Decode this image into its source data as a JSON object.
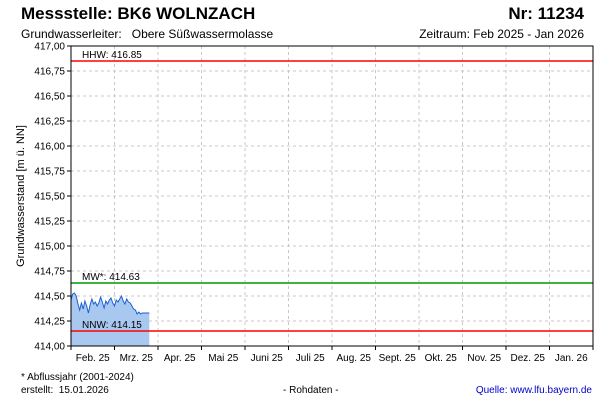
{
  "header": {
    "title": "Messstelle: BK6 WOLNZACH",
    "number": "Nr: 11234",
    "aquifer_label": "Grundwasserleiter:",
    "aquifer_value": "Obere Süßwassermolasse",
    "period_label": "Zeitraum:",
    "period_value": "Feb 2025 - Jan 2026"
  },
  "footer": {
    "footnote": "* Abflussjahr (2001-2024)",
    "created_label": "erstellt:",
    "created_value": "15.01.2026",
    "raw": "- Rohdaten -",
    "source_label": "Quelle:",
    "source_value": "www.lfu.bayern.de"
  },
  "chart_data": {
    "type": "area",
    "ylabel": "Grundwasserstand [m ü. NN]",
    "ylim": [
      414.0,
      417.0
    ],
    "y_ticks": [
      "414,00",
      "414,25",
      "414,50",
      "414,75",
      "415,00",
      "415,25",
      "415,50",
      "415,75",
      "416,00",
      "416,25",
      "416,50",
      "416,75",
      "417,00"
    ],
    "x_ticks": [
      "Feb. 25",
      "Mrz. 25",
      "Apr. 25",
      "Mai 25",
      "Juni 25",
      "Juli 25",
      "Aug. 25",
      "Sept. 25",
      "Okt. 25",
      "Nov. 25",
      "Dez. 25",
      "Jan. 26"
    ],
    "grid": true,
    "colors": {
      "area_fill": "#a8c8f0",
      "area_line": "#1f5fd0",
      "hhw": "#ff0000",
      "nnw": "#ff0000",
      "mw": "#009900"
    },
    "reference_lines": [
      {
        "label": "HHW: 416.85",
        "value": 416.85,
        "color": "#ff0000"
      },
      {
        "label": "MW*: 414.63",
        "value": 414.63,
        "color": "#009900"
      },
      {
        "label": "NNW: 414.15",
        "value": 414.15,
        "color": "#ff0000"
      }
    ],
    "series": [
      {
        "x_month_fraction": [
          0.0,
          0.04,
          0.08,
          0.12,
          0.16,
          0.2,
          0.24,
          0.28,
          0.32,
          0.36,
          0.4,
          0.44,
          0.48,
          0.52,
          0.56,
          0.6,
          0.64,
          0.68,
          0.72,
          0.76,
          0.8,
          0.84,
          0.88,
          0.92,
          0.96,
          1.0,
          1.04,
          1.08,
          1.12,
          1.16,
          1.2,
          1.24,
          1.28,
          1.32,
          1.36,
          1.4,
          1.44,
          1.48,
          1.52,
          1.56,
          1.6,
          1.64,
          1.68,
          1.72,
          1.76,
          1.8
        ],
        "values": [
          414.46,
          414.52,
          414.53,
          414.5,
          414.42,
          414.36,
          414.43,
          414.37,
          414.45,
          414.4,
          414.33,
          414.41,
          414.47,
          414.42,
          414.44,
          414.4,
          414.43,
          414.49,
          414.44,
          414.38,
          414.45,
          414.42,
          414.46,
          414.48,
          414.43,
          414.4,
          414.46,
          414.44,
          414.47,
          414.5,
          414.45,
          414.42,
          414.47,
          414.44,
          414.43,
          414.4,
          414.37,
          414.36,
          414.32,
          414.34,
          414.32,
          414.33,
          414.33,
          414.33,
          414.33,
          414.33
        ]
      }
    ]
  }
}
